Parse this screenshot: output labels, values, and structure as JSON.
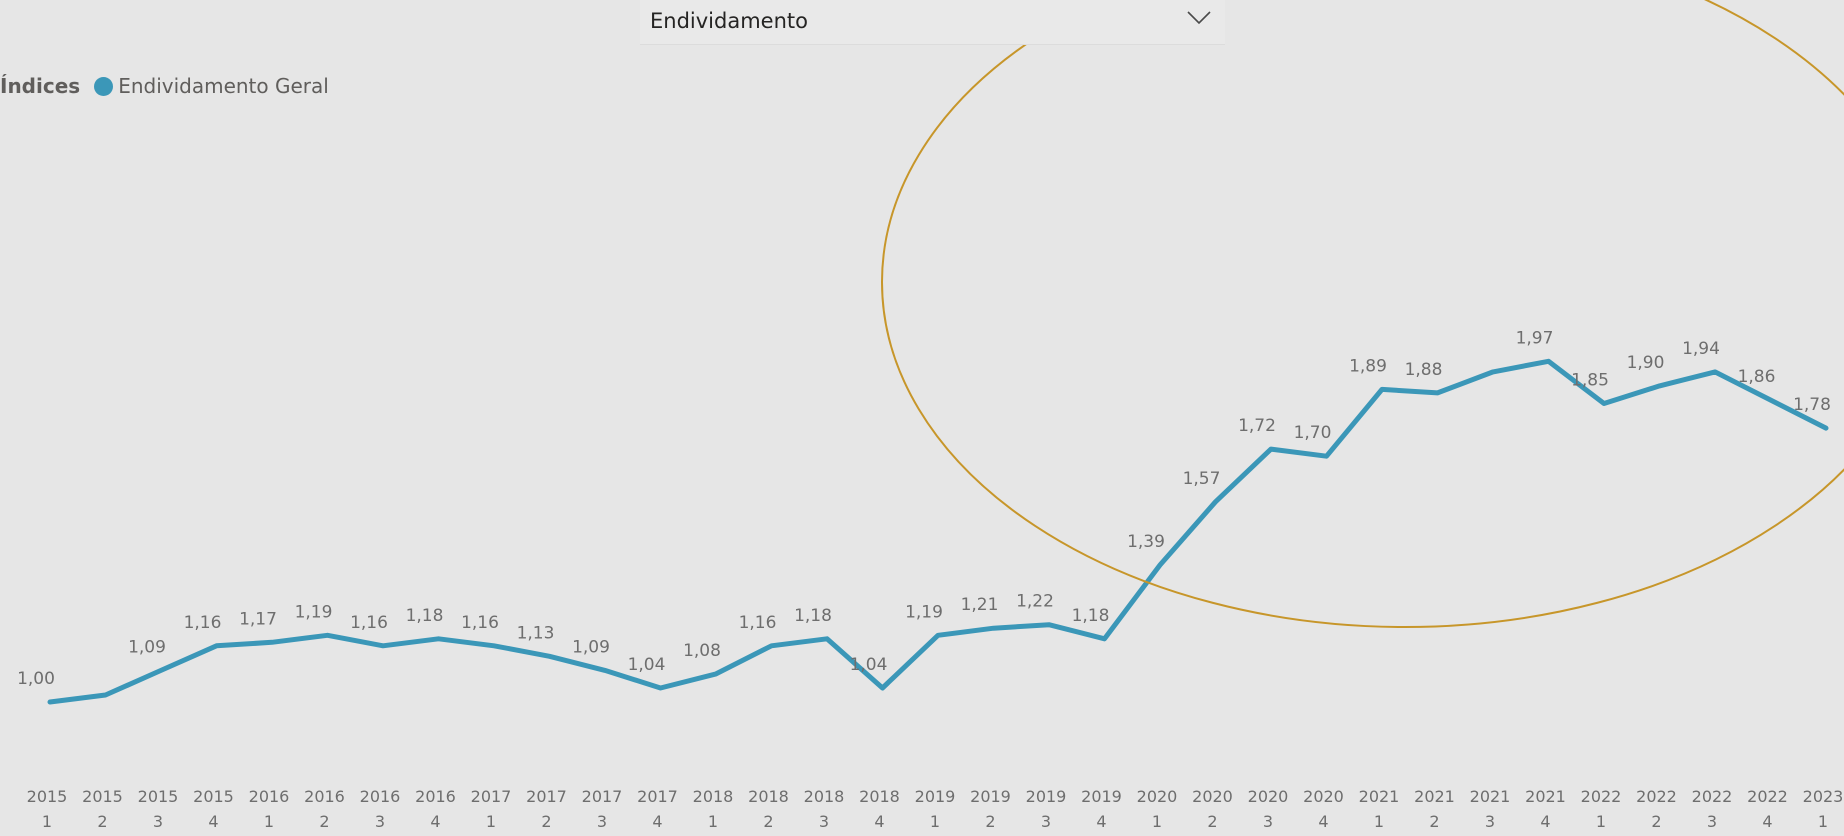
{
  "slicer": {
    "selected": "Endividamento",
    "icon": "chevron-down-icon"
  },
  "legend": {
    "title": "Índices",
    "series_name": "Endividamento Geral",
    "marker_color": "#3b97b8"
  },
  "colors": {
    "line": "#3b97b8",
    "highlight_ellipse": "#c7962a",
    "background": "#e6e6e6"
  },
  "chart_data": {
    "type": "line",
    "categories": [
      [
        "2015",
        "1"
      ],
      [
        "2015",
        "2"
      ],
      [
        "2015",
        "3"
      ],
      [
        "2015",
        "4"
      ],
      [
        "2016",
        "1"
      ],
      [
        "2016",
        "2"
      ],
      [
        "2016",
        "3"
      ],
      [
        "2016",
        "4"
      ],
      [
        "2017",
        "1"
      ],
      [
        "2017",
        "2"
      ],
      [
        "2017",
        "3"
      ],
      [
        "2017",
        "4"
      ],
      [
        "2018",
        "1"
      ],
      [
        "2018",
        "2"
      ],
      [
        "2018",
        "3"
      ],
      [
        "2018",
        "4"
      ],
      [
        "2019",
        "1"
      ],
      [
        "2019",
        "2"
      ],
      [
        "2019",
        "3"
      ],
      [
        "2019",
        "4"
      ],
      [
        "2020",
        "1"
      ],
      [
        "2020",
        "2"
      ],
      [
        "2020",
        "3"
      ],
      [
        "2020",
        "4"
      ],
      [
        "2021",
        "1"
      ],
      [
        "2021",
        "2"
      ],
      [
        "2021",
        "3"
      ],
      [
        "2021",
        "4"
      ],
      [
        "2022",
        "1"
      ],
      [
        "2022",
        "2"
      ],
      [
        "2022",
        "3"
      ],
      [
        "2022",
        "4"
      ],
      [
        "2023",
        "1"
      ]
    ],
    "series": [
      {
        "name": "Endividamento Geral",
        "values": [
          1.0,
          1.02,
          1.09,
          1.16,
          1.17,
          1.19,
          1.16,
          1.18,
          1.16,
          1.13,
          1.09,
          1.04,
          1.08,
          1.16,
          1.18,
          1.04,
          1.19,
          1.21,
          1.22,
          1.18,
          1.39,
          1.57,
          1.72,
          1.7,
          1.89,
          1.88,
          1.94,
          1.97,
          1.85,
          1.9,
          1.94,
          1.86,
          1.78
        ],
        "labels": [
          "1,00",
          "",
          "1,09",
          "1,16",
          "1,17",
          "1,19",
          "1,16",
          "1,18",
          "1,16",
          "1,13",
          "1,09",
          "1,04",
          "1,08",
          "1,16",
          "1,18",
          "1,04",
          "1,19",
          "1,21",
          "1,22",
          "1,18",
          "1,39",
          "1,57",
          "1,72",
          "1,70",
          "1,89",
          "1,88",
          "",
          "1,97",
          "1,85",
          "1,90",
          "1,94",
          "1,86",
          "1,78"
        ]
      }
    ],
    "annotations": [
      {
        "type": "ellipse",
        "color": "#c7962a",
        "covers": "2019 4 – 2023 1"
      }
    ],
    "legend_position": "top-left",
    "grid": false
  }
}
